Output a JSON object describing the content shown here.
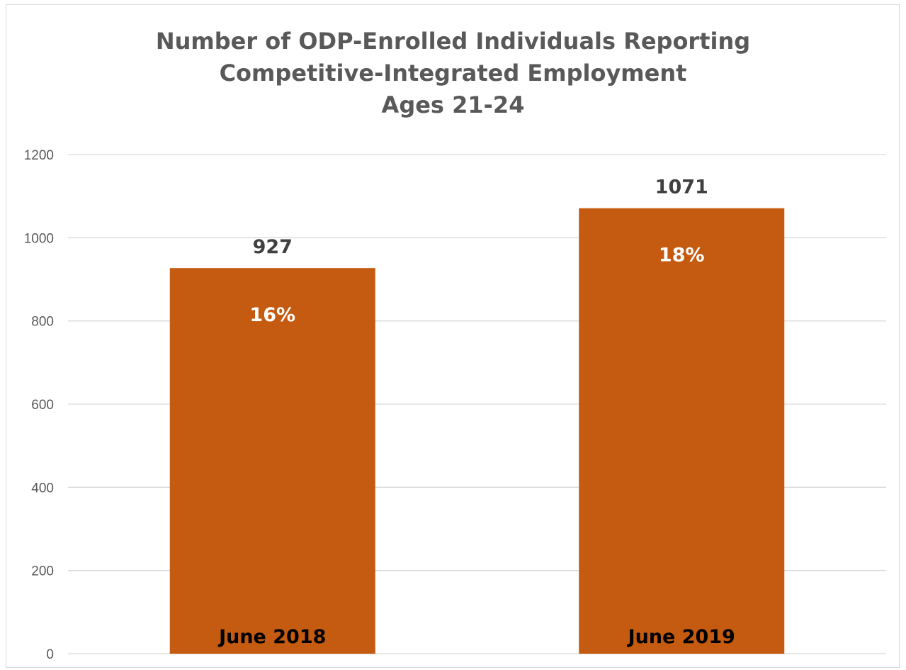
{
  "chart_data": {
    "type": "bar",
    "title": "Number of ODP-Enrolled Individuals Reporting Competitive-Integrated Employment Ages 21-24",
    "title_lines": [
      "Number of ODP-Enrolled Individuals Reporting",
      "Competitive-Integrated Employment",
      "Ages 21-24"
    ],
    "categories": [
      "June 2018",
      "June 2019"
    ],
    "values": [
      927,
      1071
    ],
    "value_labels": [
      "927",
      "1071"
    ],
    "percent_labels": [
      "16%",
      "18%"
    ],
    "xlabel": "",
    "ylabel": "",
    "ylim": [
      0,
      1200
    ],
    "y_ticks": [
      0,
      200,
      400,
      600,
      800,
      1000,
      1200
    ],
    "grid": true,
    "legend": "none",
    "bar_color": "#C55A11",
    "grid_color": "#d9d9d9",
    "tick_label_color": "#595959",
    "value_label_color": "#404040",
    "inner_label_color": "#ffffff",
    "category_label_color": "#000000"
  }
}
